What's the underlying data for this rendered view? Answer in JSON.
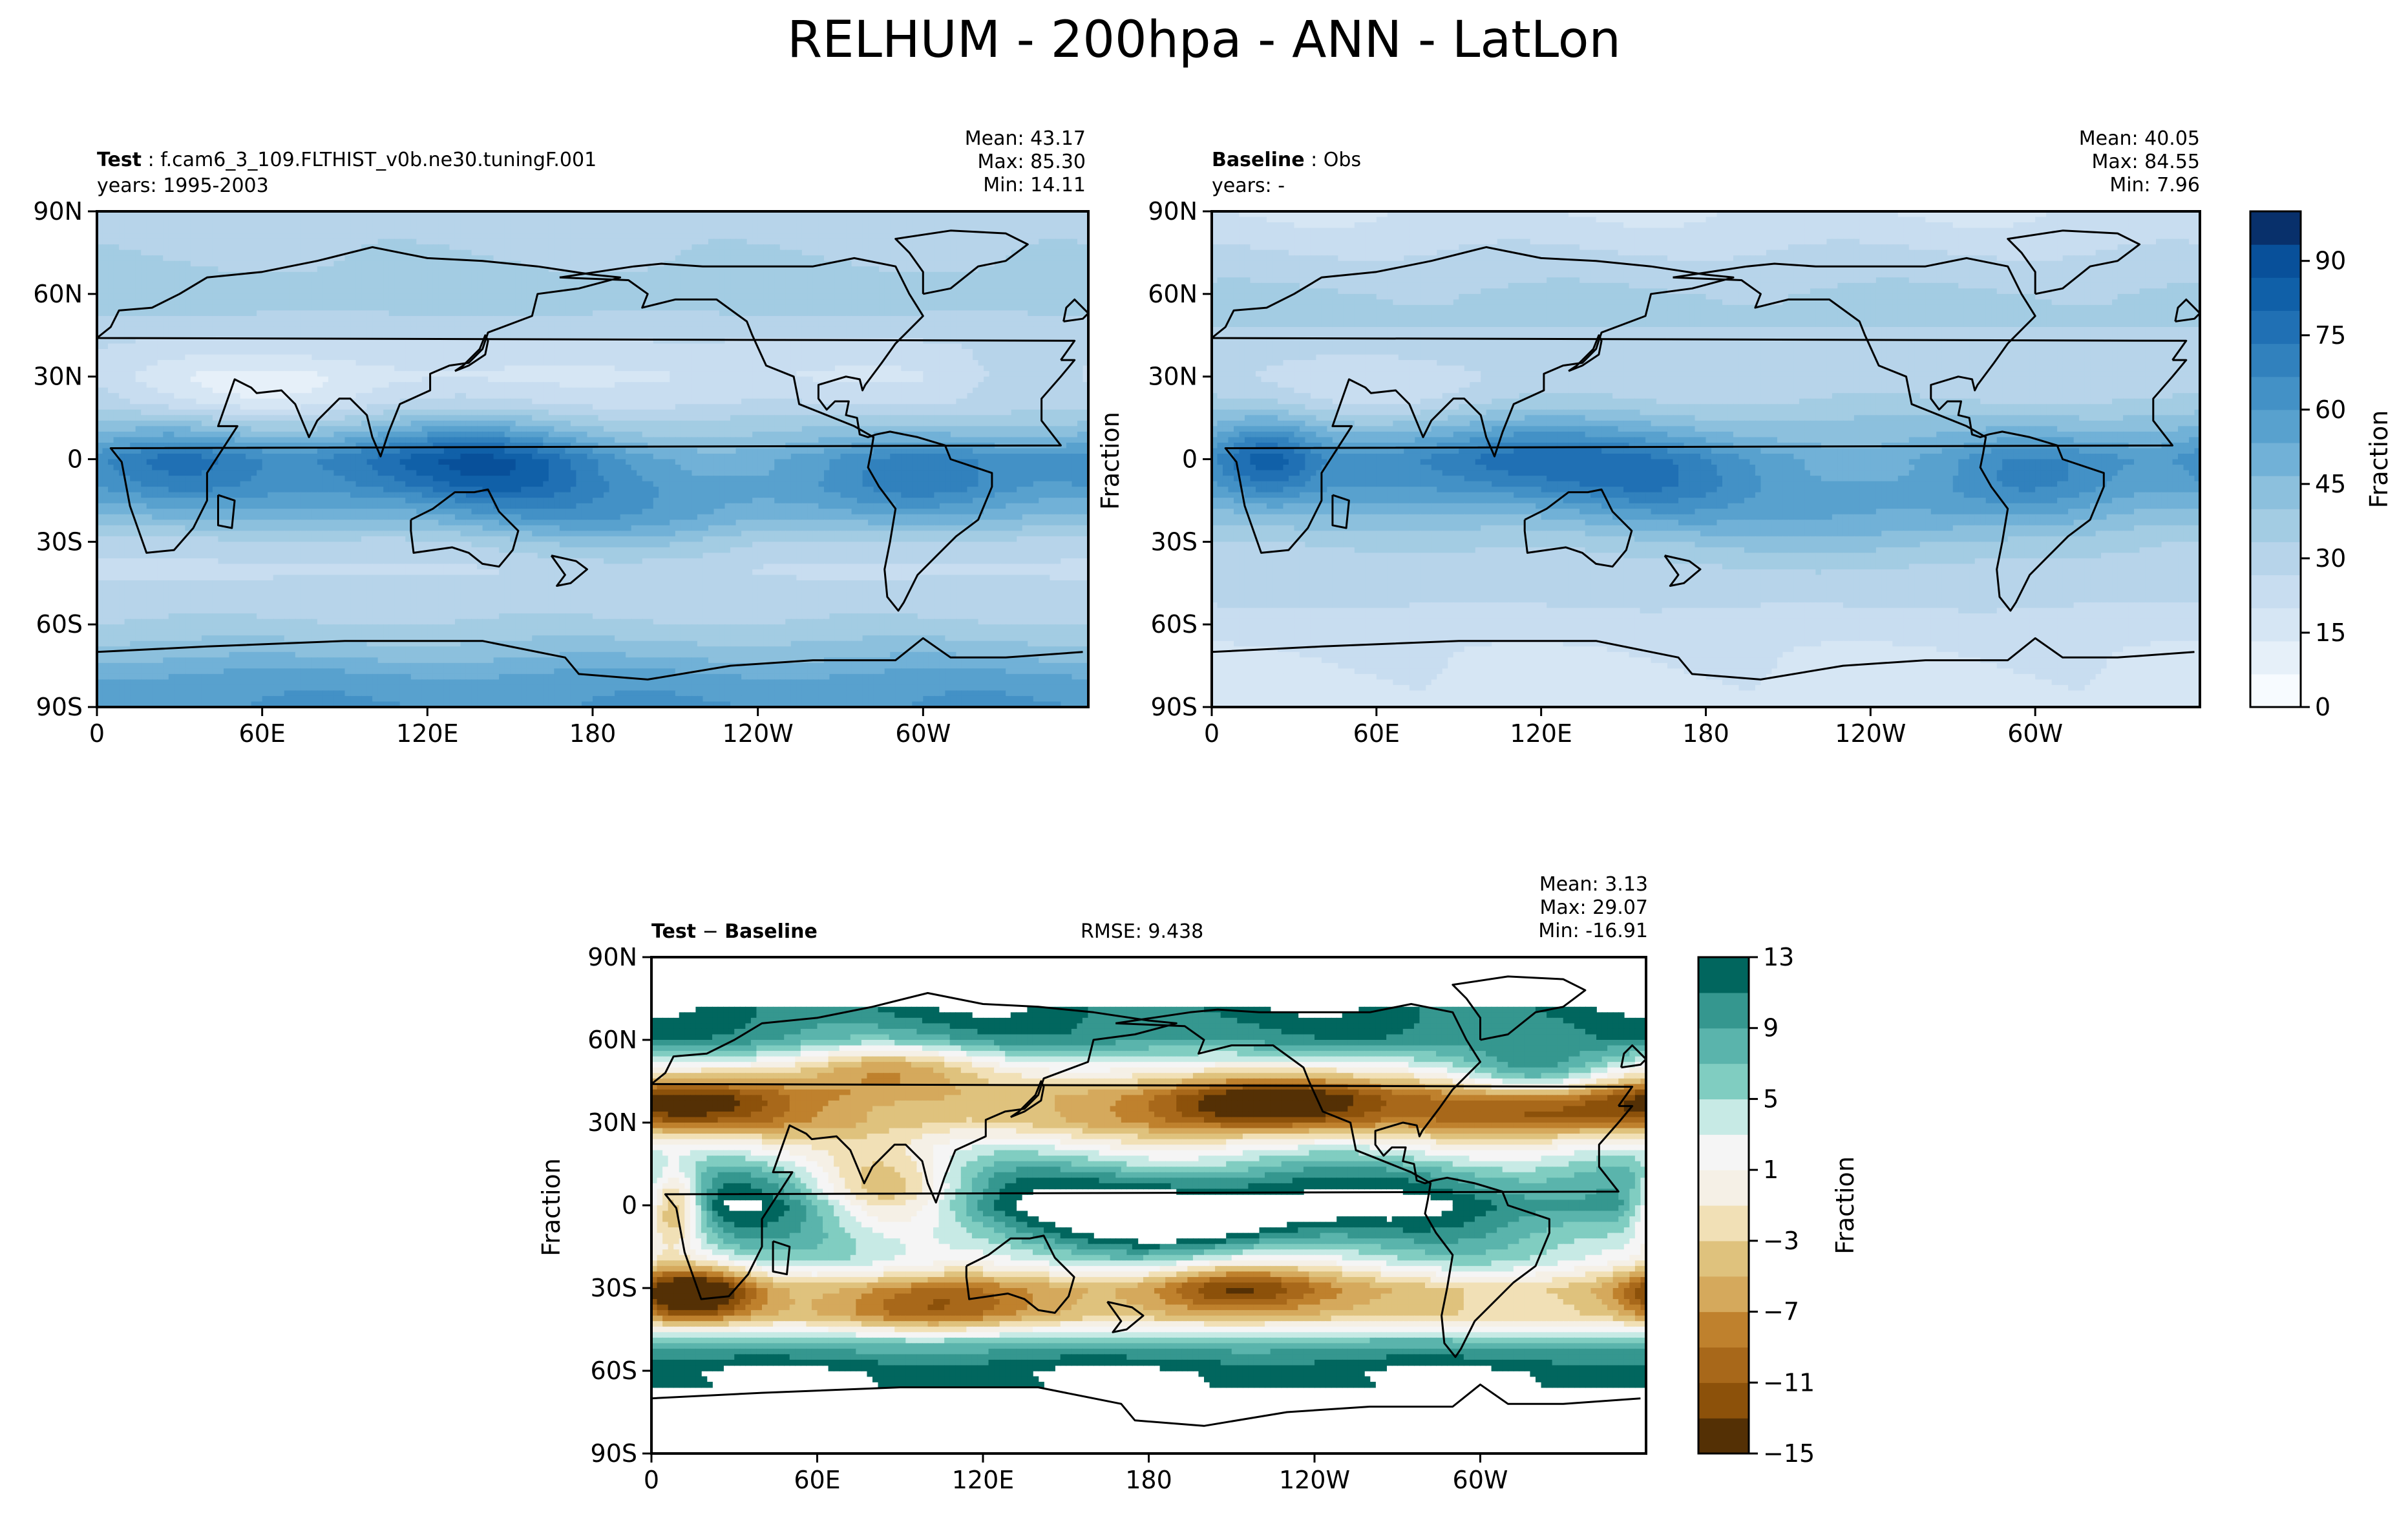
{
  "title": "RELHUM - 200hpa - ANN - LatLon",
  "panels": {
    "test": {
      "label": "Test",
      "case": "f.cam6_3_109.FLTHIST_v0b.ne30.tuningF.001",
      "years": "years: 1995-2003",
      "mean": "Mean: 43.17",
      "max": "Max: 85.30",
      "min": "Min: 14.11"
    },
    "baseline": {
      "label": "Baseline",
      "case": "Obs",
      "years": "years: -",
      "mean": "Mean: 40.05",
      "max": "Max: 84.55",
      "min": "Min:  7.96",
      "ylabel": "Fraction"
    },
    "diff": {
      "label_a": "Test",
      "label_op": " − ",
      "label_b": "Baseline",
      "rmse": "RMSE: 9.438",
      "mean": "Mean:  3.13",
      "max": "Max: 29.07",
      "min": "Min: -16.91",
      "ylabel": "Fraction"
    }
  },
  "colors": {
    "blues": [
      "#f7fbff",
      "#e6f0f9",
      "#d6e6f4",
      "#c8ddf0",
      "#b7d4ea",
      "#a3cce3",
      "#8cc0dd",
      "#71b1d7",
      "#58a1ce",
      "#4391c6",
      "#3181bd",
      "#2070b4",
      "#1060a8",
      "#08509a",
      "#08306b"
    ],
    "brbg": [
      "#543005",
      "#8c510a",
      "#a8681a",
      "#bf812d",
      "#d5a95c",
      "#dfc27d",
      "#f1e0b6",
      "#f5f0e6",
      "#f5f5f5",
      "#c7eae5",
      "#80cdc1",
      "#5ab4ac",
      "#35978f",
      "#01665e",
      "#003c30"
    ],
    "land_outline": "#000000"
  },
  "chart_data": [
    {
      "type": "heatmap",
      "name": "test",
      "title": "Test : f.cam6_3_109.FLTHIST_v0b.ne30.tuningF.001",
      "xlabel": "",
      "ylabel": "",
      "x_ticks": [
        "0",
        "60E",
        "120E",
        "180",
        "120W",
        "60W"
      ],
      "y_ticks": [
        "90N",
        "60N",
        "30N",
        "0",
        "30S",
        "60S",
        "90S"
      ],
      "xlim": [
        0,
        360
      ],
      "ylim": [
        -90,
        90
      ],
      "vmin": 0,
      "vmax": 100,
      "stats": {
        "mean": 43.17,
        "max": 85.3,
        "min": 14.11
      },
      "lat": [
        90,
        80,
        70,
        60,
        50,
        40,
        30,
        20,
        10,
        0,
        -10,
        -20,
        -30,
        -40,
        -50,
        -60,
        -70,
        -80,
        -90
      ],
      "zonal_mean": [
        30,
        31,
        34,
        37,
        32,
        24,
        19,
        26,
        42,
        62,
        60,
        48,
        31,
        25,
        30,
        34,
        44,
        56,
        60
      ],
      "anomalies": [
        {
          "lon": 30,
          "lat": 0,
          "amp": 12,
          "sx": 18,
          "sy": 10
        },
        {
          "lon": 120,
          "lat": 0,
          "amp": 18,
          "sx": 28,
          "sy": 10
        },
        {
          "lon": 150,
          "lat": -5,
          "amp": 14,
          "sx": 22,
          "sy": 12
        },
        {
          "lon": 300,
          "lat": -5,
          "amp": 12,
          "sx": 22,
          "sy": 12
        },
        {
          "lon": 240,
          "lat": 0,
          "amp": -10,
          "sx": 35,
          "sy": 8
        },
        {
          "lon": 60,
          "lat": 25,
          "amp": -10,
          "sx": 30,
          "sy": 8
        },
        {
          "lon": 190,
          "lat": -25,
          "amp": 12,
          "sx": 35,
          "sy": 10
        },
        {
          "lon": 340,
          "lat": 30,
          "amp": 10,
          "sx": 20,
          "sy": 8
        }
      ]
    },
    {
      "type": "heatmap",
      "name": "baseline",
      "title": "Baseline : Obs",
      "xlabel": "",
      "ylabel": "Fraction",
      "x_ticks": [
        "0",
        "60E",
        "120E",
        "180",
        "120W",
        "60W"
      ],
      "y_ticks": [
        "90N",
        "60N",
        "30N",
        "0",
        "30S",
        "60S",
        "90S"
      ],
      "xlim": [
        0,
        360
      ],
      "ylim": [
        -90,
        90
      ],
      "vmin": 0,
      "vmax": 100,
      "stats": {
        "mean": 40.05,
        "max": 84.55,
        "min": 7.96
      },
      "lat": [
        90,
        80,
        70,
        60,
        50,
        40,
        30,
        20,
        10,
        0,
        -10,
        -20,
        -30,
        -40,
        -50,
        -60,
        -70,
        -80,
        -90
      ],
      "zonal_mean": [
        20,
        24,
        30,
        34,
        34,
        30,
        28,
        34,
        46,
        60,
        56,
        45,
        34,
        30,
        28,
        24,
        20,
        18,
        17
      ],
      "anomalies": [
        {
          "lon": 20,
          "lat": 0,
          "amp": 22,
          "sx": 12,
          "sy": 10
        },
        {
          "lon": 110,
          "lat": 0,
          "amp": 18,
          "sx": 28,
          "sy": 10
        },
        {
          "lon": 160,
          "lat": -10,
          "amp": 14,
          "sx": 25,
          "sy": 12
        },
        {
          "lon": 300,
          "lat": -5,
          "amp": 12,
          "sx": 22,
          "sy": 12
        },
        {
          "lon": 230,
          "lat": -25,
          "amp": 12,
          "sx": 35,
          "sy": 10
        },
        {
          "lon": 250,
          "lat": 0,
          "amp": -10,
          "sx": 30,
          "sy": 8
        },
        {
          "lon": 60,
          "lat": 25,
          "amp": -8,
          "sx": 30,
          "sy": 8
        }
      ],
      "colorbar": {
        "label": "Fraction",
        "ticks": [
          0,
          15,
          30,
          45,
          60,
          75,
          90
        ],
        "vmin": 0,
        "vmax": 100
      }
    },
    {
      "type": "heatmap",
      "name": "difference",
      "title": "Test − Baseline",
      "xlabel": "",
      "ylabel": "Fraction",
      "x_ticks": [
        "0",
        "60E",
        "120E",
        "180",
        "120W",
        "60W"
      ],
      "y_ticks": [
        "90N",
        "60N",
        "30N",
        "0",
        "30S",
        "60S",
        "90S"
      ],
      "xlim": [
        0,
        360
      ],
      "ylim": [
        -90,
        90
      ],
      "vmin": -15,
      "vmax": 13,
      "levels": [
        -15,
        -13,
        -11,
        -9,
        -7,
        -5,
        -3,
        -1,
        1,
        3,
        5,
        7,
        9,
        11,
        13
      ],
      "stats": {
        "mean": 3.13,
        "max": 29.07,
        "min": -16.91,
        "rmse": 9.438
      },
      "valid_lat_range": [
        -65,
        72
      ],
      "lat": [
        72,
        60,
        50,
        40,
        30,
        20,
        10,
        0,
        -10,
        -20,
        -30,
        -40,
        -50,
        -60,
        -65
      ],
      "zonal_mean": [
        12,
        10,
        2,
        -4,
        -4,
        3,
        9,
        12,
        8,
        4,
        -4,
        -3,
        8,
        13,
        13
      ],
      "anomalies": [
        {
          "lon": 225,
          "lat": 37,
          "amp": -14,
          "sx": 30,
          "sy": 7
        },
        {
          "lon": 320,
          "lat": 37,
          "amp": -12,
          "sx": 25,
          "sy": 7
        },
        {
          "lon": 15,
          "lat": 37,
          "amp": -10,
          "sx": 25,
          "sy": 7
        },
        {
          "lon": 85,
          "lat": 50,
          "amp": -8,
          "sx": 25,
          "sy": 7
        },
        {
          "lon": 8,
          "lat": 0,
          "amp": -16,
          "sx": 8,
          "sy": 10
        },
        {
          "lon": 85,
          "lat": 5,
          "amp": -12,
          "sx": 20,
          "sy": 10
        },
        {
          "lon": 210,
          "lat": -30,
          "amp": -10,
          "sx": 22,
          "sy": 7
        },
        {
          "lon": 15,
          "lat": -32,
          "amp": -14,
          "sx": 15,
          "sy": 7
        },
        {
          "lon": 100,
          "lat": -37,
          "amp": -8,
          "sx": 25,
          "sy": 7
        },
        {
          "lon": 200,
          "lat": -5,
          "amp": 10,
          "sx": 30,
          "sy": 8
        },
        {
          "lon": 320,
          "lat": 45,
          "amp": 12,
          "sx": 20,
          "sy": 8
        }
      ],
      "colorbar": {
        "label": "Fraction",
        "ticks": [
          -15,
          -11,
          -7,
          -3,
          1,
          5,
          9,
          13
        ],
        "vmin": -15,
        "vmax": 13
      }
    }
  ],
  "colorbar_labels": {
    "main": {
      "label": "Fraction",
      "ticks": [
        "0",
        "15",
        "30",
        "45",
        "60",
        "75",
        "90"
      ]
    },
    "diff": {
      "label": "Fraction",
      "ticks": [
        "−15",
        "−11",
        "−7",
        "−3",
        "1",
        "5",
        "9",
        "13"
      ]
    }
  }
}
